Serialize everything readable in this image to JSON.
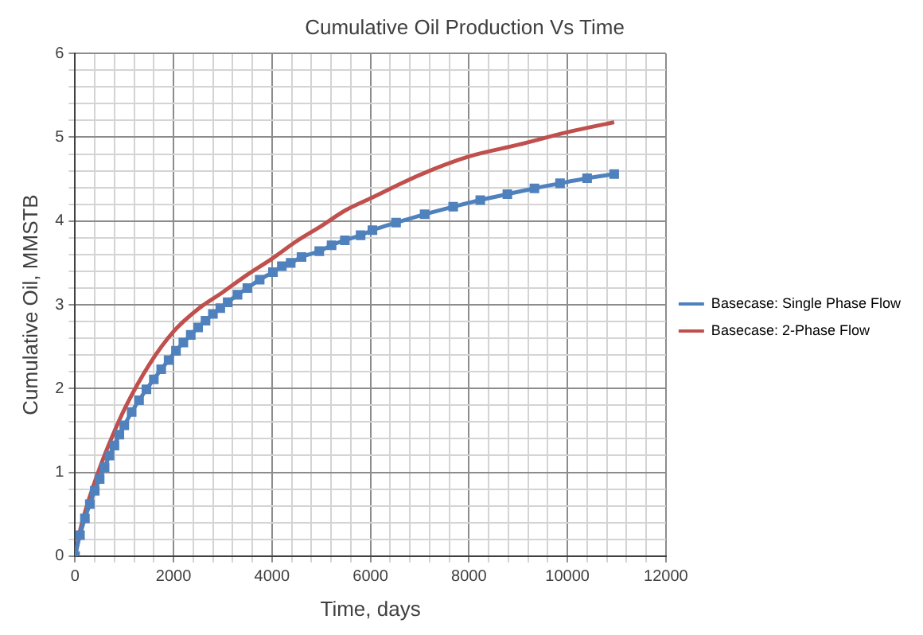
{
  "chart_data": {
    "type": "line",
    "title": "Cumulative Oil Production Vs Time",
    "xlabel": "Time, days",
    "ylabel": "Cumulative Oil, MMSTB",
    "xlim": [
      0,
      12000
    ],
    "ylim": [
      0,
      6
    ],
    "xticks": [
      0,
      {
        "value": 400,
        "label": null
      },
      {
        "value": 800,
        "label": null
      },
      {
        "value": 1200,
        "label": null
      },
      {
        "value": 1600,
        "label": null
      },
      2000,
      {
        "value": 2400,
        "label": null
      },
      {
        "value": 2800,
        "label": null
      },
      {
        "value": 3200,
        "label": null
      },
      {
        "value": 3600,
        "label": null
      },
      4000,
      {
        "value": 4400,
        "label": null
      },
      {
        "value": 4800,
        "label": null
      },
      {
        "value": 5200,
        "label": null
      },
      {
        "value": 5600,
        "label": null
      },
      6000,
      {
        "value": 6400,
        "label": null
      },
      {
        "value": 6800,
        "label": null
      },
      {
        "value": 7200,
        "label": null
      },
      {
        "value": 7600,
        "label": null
      },
      8000,
      {
        "value": 8400,
        "label": null
      },
      {
        "value": 8800,
        "label": null
      },
      {
        "value": 9200,
        "label": null
      },
      {
        "value": 9600,
        "label": null
      },
      10000,
      {
        "value": 10400,
        "label": null
      },
      {
        "value": 10800,
        "label": null
      },
      {
        "value": 11200,
        "label": null
      },
      {
        "value": 11600,
        "label": null
      },
      12000
    ],
    "yticks": [
      0,
      {
        "value": 0.2,
        "label": null
      },
      {
        "value": 0.4,
        "label": null
      },
      {
        "value": 0.6,
        "label": null
      },
      {
        "value": 0.8,
        "label": null
      },
      1,
      {
        "value": 1.2,
        "label": null
      },
      {
        "value": 1.4,
        "label": null
      },
      {
        "value": 1.6,
        "label": null
      },
      {
        "value": 1.8,
        "label": null
      },
      2,
      {
        "value": 2.2,
        "label": null
      },
      {
        "value": 2.4,
        "label": null
      },
      {
        "value": 2.6,
        "label": null
      },
      {
        "value": 2.8,
        "label": null
      },
      3,
      {
        "value": 3.2,
        "label": null
      },
      {
        "value": 3.4,
        "label": null
      },
      {
        "value": 3.6,
        "label": null
      },
      {
        "value": 3.8,
        "label": null
      },
      4,
      {
        "value": 4.2,
        "label": null
      },
      {
        "value": 4.4,
        "label": null
      },
      {
        "value": 4.6,
        "label": null
      },
      {
        "value": 4.8,
        "label": null
      },
      5,
      {
        "value": 5.2,
        "label": null
      },
      {
        "value": 5.4,
        "label": null
      },
      {
        "value": 5.6,
        "label": null
      },
      {
        "value": 5.8,
        "label": null
      },
      6
    ],
    "grid": true,
    "legend": "right",
    "series": [
      {
        "name": "Basecase: Single Phase Flow",
        "color": "#4f81bd",
        "marker": "square",
        "x": [
          0,
          100,
          200,
          300,
          400,
          500,
          600,
          700,
          800,
          900,
          1000,
          1150,
          1300,
          1450,
          1600,
          1750,
          1900,
          2050,
          2200,
          2350,
          2500,
          2650,
          2800,
          2950,
          3100,
          3300,
          3500,
          3750,
          4020,
          4200,
          4380,
          4600,
          4960,
          5210,
          5480,
          5800,
          6040,
          6520,
          7100,
          7680,
          8230,
          8780,
          9330,
          9850,
          10400,
          10950
        ],
        "values": [
          0,
          0.25,
          0.45,
          0.62,
          0.78,
          0.92,
          1.06,
          1.2,
          1.32,
          1.45,
          1.56,
          1.72,
          1.86,
          1.99,
          2.11,
          2.23,
          2.34,
          2.45,
          2.55,
          2.64,
          2.73,
          2.81,
          2.89,
          2.96,
          3.03,
          3.12,
          3.2,
          3.3,
          3.39,
          3.46,
          3.5,
          3.57,
          3.64,
          3.71,
          3.77,
          3.83,
          3.89,
          3.98,
          4.08,
          4.17,
          4.25,
          4.32,
          4.39,
          4.45,
          4.51,
          4.56
        ]
      },
      {
        "name": "Basecase: 2-Phase Flow",
        "color": "#c0504d",
        "marker": "none",
        "x": [
          0,
          100,
          250,
          500,
          750,
          1000,
          1500,
          2000,
          2500,
          3000,
          3500,
          4000,
          4500,
          5000,
          5500,
          6000,
          7000,
          8000,
          9000,
          10000,
          10950
        ],
        "values": [
          0,
          0.3,
          0.62,
          1.05,
          1.42,
          1.75,
          2.28,
          2.68,
          2.95,
          3.15,
          3.36,
          3.55,
          3.76,
          3.94,
          4.13,
          4.27,
          4.55,
          4.77,
          4.91,
          5.06,
          5.18
        ]
      }
    ]
  }
}
